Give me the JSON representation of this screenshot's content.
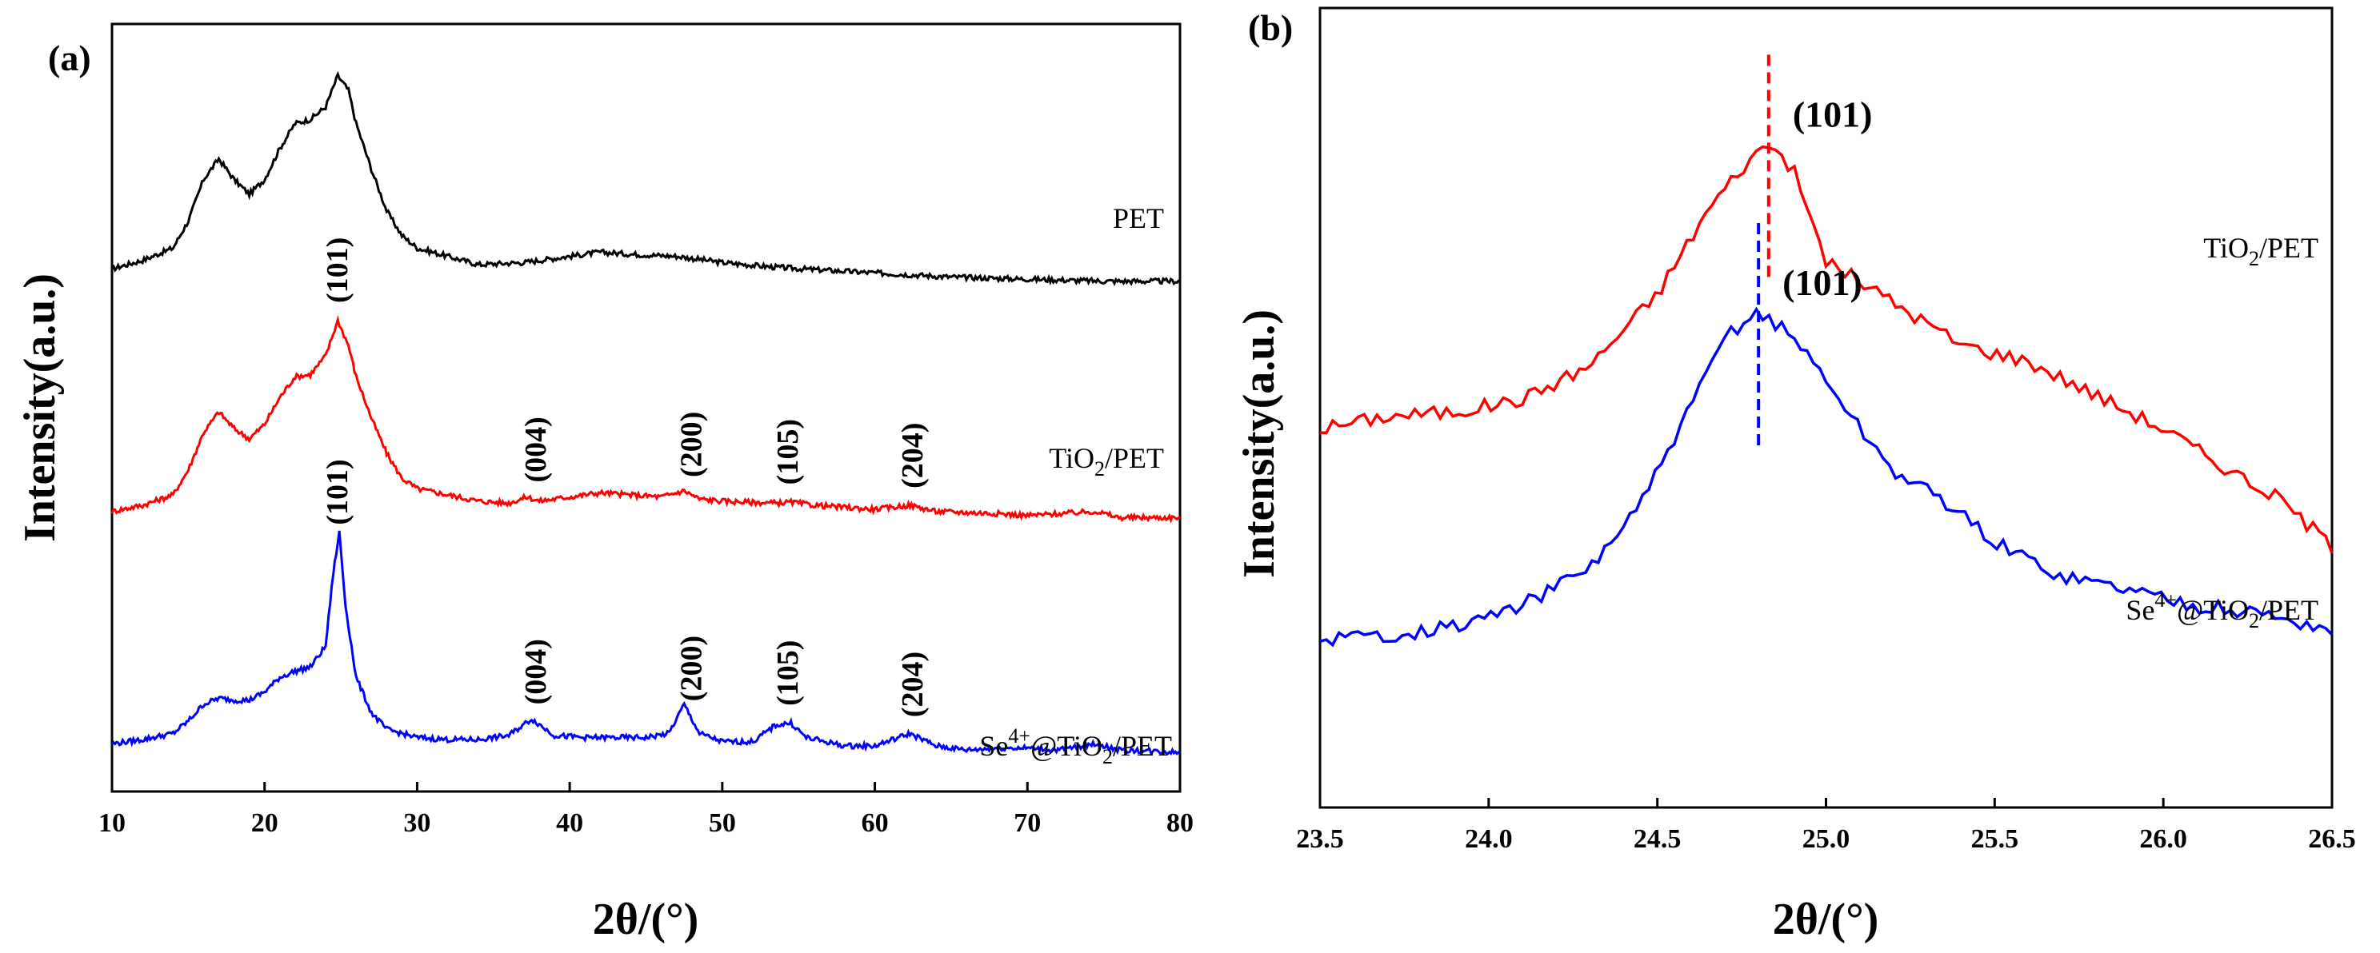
{
  "chart_data": [
    {
      "panel": "(a)",
      "type": "line",
      "xlabel": "2θ/(°)",
      "ylabel": "Intensity(a.u.)",
      "xlim": [
        10,
        80
      ],
      "xticks": [
        "10",
        "20",
        "30",
        "40",
        "50",
        "60",
        "70",
        "80"
      ],
      "xtick_values": [
        10,
        20,
        30,
        40,
        50,
        60,
        70,
        80
      ],
      "series": [
        {
          "name": "PET",
          "color": "#000000",
          "offset": 2.3,
          "points": [
            [
              10,
              0.02
            ],
            [
              12,
              0.06
            ],
            [
              14,
              0.12
            ],
            [
              15,
              0.25
            ],
            [
              16,
              0.45
            ],
            [
              17,
              0.55
            ],
            [
              18,
              0.45
            ],
            [
              19,
              0.38
            ],
            [
              20,
              0.45
            ],
            [
              21,
              0.6
            ],
            [
              22,
              0.72
            ],
            [
              23,
              0.74
            ],
            [
              24,
              0.8
            ],
            [
              24.8,
              0.95
            ],
            [
              25.5,
              0.88
            ],
            [
              26,
              0.72
            ],
            [
              27,
              0.5
            ],
            [
              28,
              0.3
            ],
            [
              29,
              0.18
            ],
            [
              30,
              0.12
            ],
            [
              32,
              0.08
            ],
            [
              34,
              0.04
            ],
            [
              37,
              0.05
            ],
            [
              40,
              0.08
            ],
            [
              42,
              0.1
            ],
            [
              44,
              0.09
            ],
            [
              47,
              0.08
            ],
            [
              50,
              0.05
            ],
            [
              53,
              0.03
            ],
            [
              55,
              0.02
            ],
            [
              60,
              0.0
            ],
            [
              65,
              -0.02
            ],
            [
              70,
              -0.03
            ],
            [
              75,
              -0.04
            ],
            [
              80,
              -0.04
            ]
          ],
          "peaks": []
        },
        {
          "name": "TiO2/PET",
          "color": "#ff0000",
          "offset": 1.15,
          "points": [
            [
              10,
              0.0
            ],
            [
              12,
              0.03
            ],
            [
              14,
              0.08
            ],
            [
              15,
              0.2
            ],
            [
              16,
              0.38
            ],
            [
              17,
              0.48
            ],
            [
              18,
              0.4
            ],
            [
              19,
              0.35
            ],
            [
              20,
              0.42
            ],
            [
              21,
              0.55
            ],
            [
              22,
              0.65
            ],
            [
              23,
              0.66
            ],
            [
              24,
              0.75
            ],
            [
              24.8,
              0.92
            ],
            [
              25.5,
              0.8
            ],
            [
              26,
              0.65
            ],
            [
              27,
              0.45
            ],
            [
              28,
              0.28
            ],
            [
              29,
              0.16
            ],
            [
              30,
              0.11
            ],
            [
              32,
              0.08
            ],
            [
              34,
              0.05
            ],
            [
              36,
              0.04
            ],
            [
              37.2,
              0.07
            ],
            [
              38,
              0.05
            ],
            [
              40,
              0.07
            ],
            [
              42,
              0.09
            ],
            [
              44,
              0.08
            ],
            [
              46,
              0.07
            ],
            [
              47.5,
              0.1
            ],
            [
              48.5,
              0.06
            ],
            [
              50,
              0.05
            ],
            [
              53.5,
              0.04
            ],
            [
              54.5,
              0.045
            ],
            [
              56,
              0.03
            ],
            [
              60,
              0.01
            ],
            [
              62.3,
              0.03
            ],
            [
              64,
              0.0
            ],
            [
              68,
              -0.01
            ],
            [
              70,
              -0.02
            ],
            [
              74.5,
              0.0
            ],
            [
              76,
              -0.03
            ],
            [
              80,
              -0.03
            ]
          ],
          "peaks": [
            {
              "label": "(101)",
              "x": 24.8
            },
            {
              "label": "(004)",
              "x": 37.8
            },
            {
              "label": "(200)",
              "x": 48
            },
            {
              "label": "(105)",
              "x": 54.3
            },
            {
              "label": "(204)",
              "x": 62.5
            }
          ]
        },
        {
          "name": "Se4+@TiO2/PET",
          "name_base": "Se",
          "name_sup": "4+",
          "name_rest": "@TiO",
          "name_sub": "2",
          "name_end": "/PET",
          "color": "#0000ff",
          "offset": 0.0,
          "points": [
            [
              10,
              0.03
            ],
            [
              12,
              0.05
            ],
            [
              14,
              0.08
            ],
            [
              15,
              0.14
            ],
            [
              16,
              0.22
            ],
            [
              17,
              0.25
            ],
            [
              18,
              0.24
            ],
            [
              19,
              0.24
            ],
            [
              20,
              0.28
            ],
            [
              21,
              0.35
            ],
            [
              22,
              0.38
            ],
            [
              23,
              0.4
            ],
            [
              24,
              0.5
            ],
            [
              24.5,
              0.85
            ],
            [
              24.9,
              1.05
            ],
            [
              25.3,
              0.7
            ],
            [
              26,
              0.35
            ],
            [
              27,
              0.18
            ],
            [
              28,
              0.1
            ],
            [
              29,
              0.08
            ],
            [
              30,
              0.06
            ],
            [
              32,
              0.05
            ],
            [
              34,
              0.05
            ],
            [
              36,
              0.07
            ],
            [
              37.5,
              0.15
            ],
            [
              39,
              0.07
            ],
            [
              41,
              0.06
            ],
            [
              43,
              0.06
            ],
            [
              45,
              0.06
            ],
            [
              46.5,
              0.08
            ],
            [
              47.5,
              0.22
            ],
            [
              48.5,
              0.08
            ],
            [
              50,
              0.04
            ],
            [
              52,
              0.04
            ],
            [
              53.5,
              0.12
            ],
            [
              54.5,
              0.13
            ],
            [
              55.5,
              0.06
            ],
            [
              58,
              0.02
            ],
            [
              60,
              0.02
            ],
            [
              62.3,
              0.08
            ],
            [
              64,
              0.02
            ],
            [
              66,
              0.0
            ],
            [
              68,
              0.01
            ],
            [
              70,
              0.01
            ],
            [
              72,
              0.0
            ],
            [
              74.5,
              0.03
            ],
            [
              76,
              0.0
            ],
            [
              80,
              -0.01
            ]
          ],
          "peaks": [
            {
              "label": "(101)",
              "x": 24.8
            },
            {
              "label": "(004)",
              "x": 37.8
            },
            {
              "label": "(200)",
              "x": 48
            },
            {
              "label": "(105)",
              "x": 54.3
            },
            {
              "label": "(204)",
              "x": 62.5
            }
          ]
        }
      ]
    },
    {
      "panel": "(b)",
      "type": "line",
      "xlabel": "2θ/(°)",
      "ylabel": "Intensity(a.u.)",
      "xlim": [
        23.5,
        26.5
      ],
      "xticks": [
        "23.5",
        "24.0",
        "24.5",
        "25.0",
        "25.5",
        "26.0",
        "26.5"
      ],
      "xtick_values": [
        23.5,
        24.0,
        24.5,
        25.0,
        25.5,
        26.0,
        26.5
      ],
      "series": [
        {
          "name": "TiO2/PET",
          "name_base": "TiO",
          "name_sub": "2",
          "name_end": "/PET",
          "color": "#ff0000",
          "peak_x": 24.83,
          "peak_label": "(101)",
          "points": [
            [
              23.5,
              0.8
            ],
            [
              23.7,
              0.83
            ],
            [
              23.9,
              0.84
            ],
            [
              24.1,
              0.87
            ],
            [
              24.3,
              0.95
            ],
            [
              24.5,
              1.12
            ],
            [
              24.65,
              1.32
            ],
            [
              24.75,
              1.42
            ],
            [
              24.83,
              1.48
            ],
            [
              24.9,
              1.42
            ],
            [
              25.0,
              1.2
            ],
            [
              25.2,
              1.1
            ],
            [
              25.4,
              1.0
            ],
            [
              25.6,
              0.96
            ],
            [
              25.8,
              0.88
            ],
            [
              26.0,
              0.8
            ],
            [
              26.2,
              0.7
            ],
            [
              26.35,
              0.63
            ],
            [
              26.5,
              0.52
            ]
          ]
        },
        {
          "name": "Se4+@TiO2/PET",
          "name_base": "Se",
          "name_sup": "4+",
          "name_rest": "@TiO",
          "name_sub": "2",
          "name_end": "/PET",
          "color": "#0000ff",
          "peak_x": 24.8,
          "peak_label": "(101)",
          "points": [
            [
              23.5,
              0.3
            ],
            [
              23.7,
              0.31
            ],
            [
              23.9,
              0.33
            ],
            [
              24.1,
              0.38
            ],
            [
              24.3,
              0.47
            ],
            [
              24.45,
              0.62
            ],
            [
              24.6,
              0.85
            ],
            [
              24.7,
              1.02
            ],
            [
              24.8,
              1.08
            ],
            [
              24.9,
              1.02
            ],
            [
              25.0,
              0.92
            ],
            [
              25.1,
              0.8
            ],
            [
              25.2,
              0.7
            ],
            [
              25.35,
              0.63
            ],
            [
              25.5,
              0.53
            ],
            [
              25.7,
              0.45
            ],
            [
              25.9,
              0.42
            ],
            [
              26.1,
              0.38
            ],
            [
              26.3,
              0.36
            ],
            [
              26.5,
              0.32
            ]
          ]
        }
      ]
    }
  ]
}
